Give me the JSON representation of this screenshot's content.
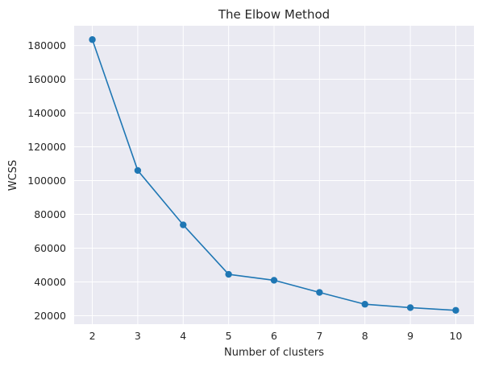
{
  "chart_data": {
    "type": "line",
    "title": "The Elbow Method",
    "xlabel": "Number of clusters",
    "ylabel": "WCSS",
    "x": [
      2,
      3,
      4,
      5,
      6,
      7,
      8,
      9,
      10
    ],
    "series": [
      {
        "values": [
          183500,
          106000,
          73800,
          44500,
          41000,
          33800,
          26800,
          24800,
          23200
        ],
        "color": "#1f77b4",
        "marker": "circle"
      }
    ],
    "xlim": [
      1.6,
      10.4
    ],
    "ylim": [
      15000,
      191700
    ],
    "xticks": [
      2,
      3,
      4,
      5,
      6,
      7,
      8,
      9,
      10
    ],
    "yticks": [
      20000,
      40000,
      60000,
      80000,
      100000,
      120000,
      140000,
      160000,
      180000
    ],
    "grid": true,
    "background": "#eaeaf2",
    "grid_color": "#ffffff",
    "text_color": "#262626"
  }
}
